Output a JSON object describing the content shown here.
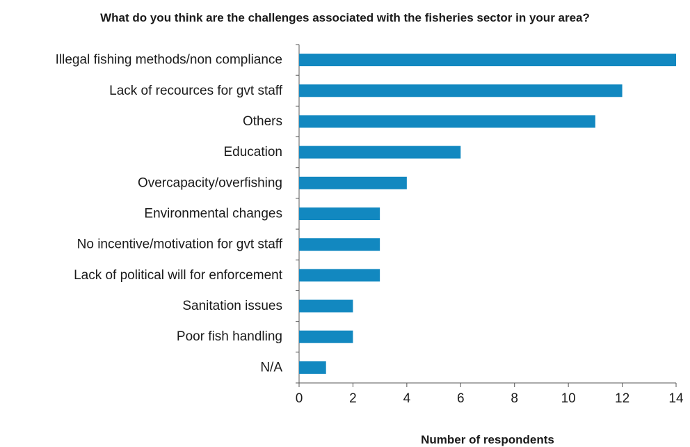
{
  "chart_data": {
    "type": "bar",
    "orientation": "horizontal",
    "title": "What do you think are the challenges associated with the fisheries sector in your area?",
    "xlabel": "Number of respondents",
    "ylabel": "",
    "categories": [
      "Illegal fishing methods/non compliance",
      "Lack of recources for gvt staff",
      "Others",
      "Education",
      "Overcapacity/overfishing",
      "Environmental changes",
      "No incentive/motivation for gvt staff",
      "Lack of political will for enforcement",
      "Sanitation issues",
      "Poor fish handling",
      "N/A"
    ],
    "values": [
      14,
      12,
      11,
      6,
      4,
      3,
      3,
      3,
      2,
      2,
      1
    ],
    "xlim": [
      0,
      14
    ],
    "xticks": [
      0,
      2,
      4,
      6,
      8,
      10,
      12,
      14
    ],
    "bar_color": "#1288c0",
    "grid": false,
    "legend": "none"
  }
}
